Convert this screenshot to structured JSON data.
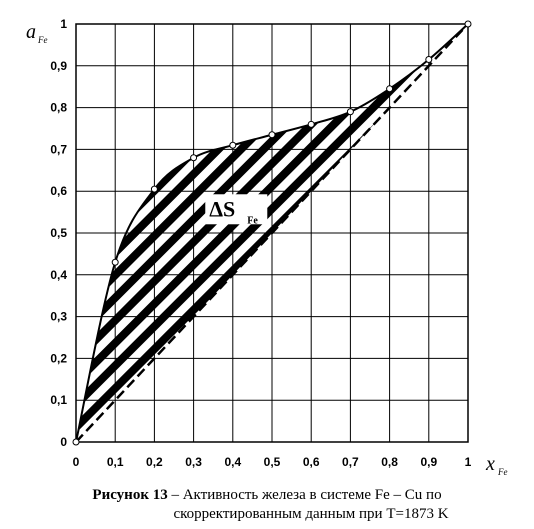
{
  "chart_data": {
    "type": "line",
    "x_range": [
      0,
      1
    ],
    "y_range": [
      0,
      1
    ],
    "grid": true,
    "x_ticks": [
      "0",
      "0,1",
      "0,2",
      "0,3",
      "0,4",
      "0,5",
      "0,6",
      "0,7",
      "0,8",
      "0,9",
      "1"
    ],
    "y_ticks": [
      "0",
      "0,1",
      "0,2",
      "0,3",
      "0,4",
      "0,5",
      "0,6",
      "0,7",
      "0,8",
      "0,9",
      "1"
    ],
    "xlabel_main": "x",
    "xlabel_sub": "Fe",
    "ylabel_main": "a",
    "ylabel_sub": "Fe",
    "series": [
      {
        "style": "solid-with-markers",
        "x": [
          0,
          0.1,
          0.2,
          0.3,
          0.4,
          0.5,
          0.6,
          0.7,
          0.8,
          0.9,
          1.0
        ],
        "y": [
          0,
          0.43,
          0.605,
          0.68,
          0.71,
          0.735,
          0.76,
          0.79,
          0.845,
          0.915,
          1.0
        ]
      },
      {
        "style": "dashed",
        "x": [
          0,
          1
        ],
        "y": [
          0,
          1
        ]
      }
    ],
    "annotation": {
      "main": "ΔS",
      "sub": "Fe",
      "x": 0.34,
      "y": 0.54
    }
  },
  "caption": {
    "line1_bold": "Рисунок 13",
    "line1_rest": " – Активность железа в системе Fe – Cu по",
    "line2": "скорректированным данным при T=1873 K"
  }
}
